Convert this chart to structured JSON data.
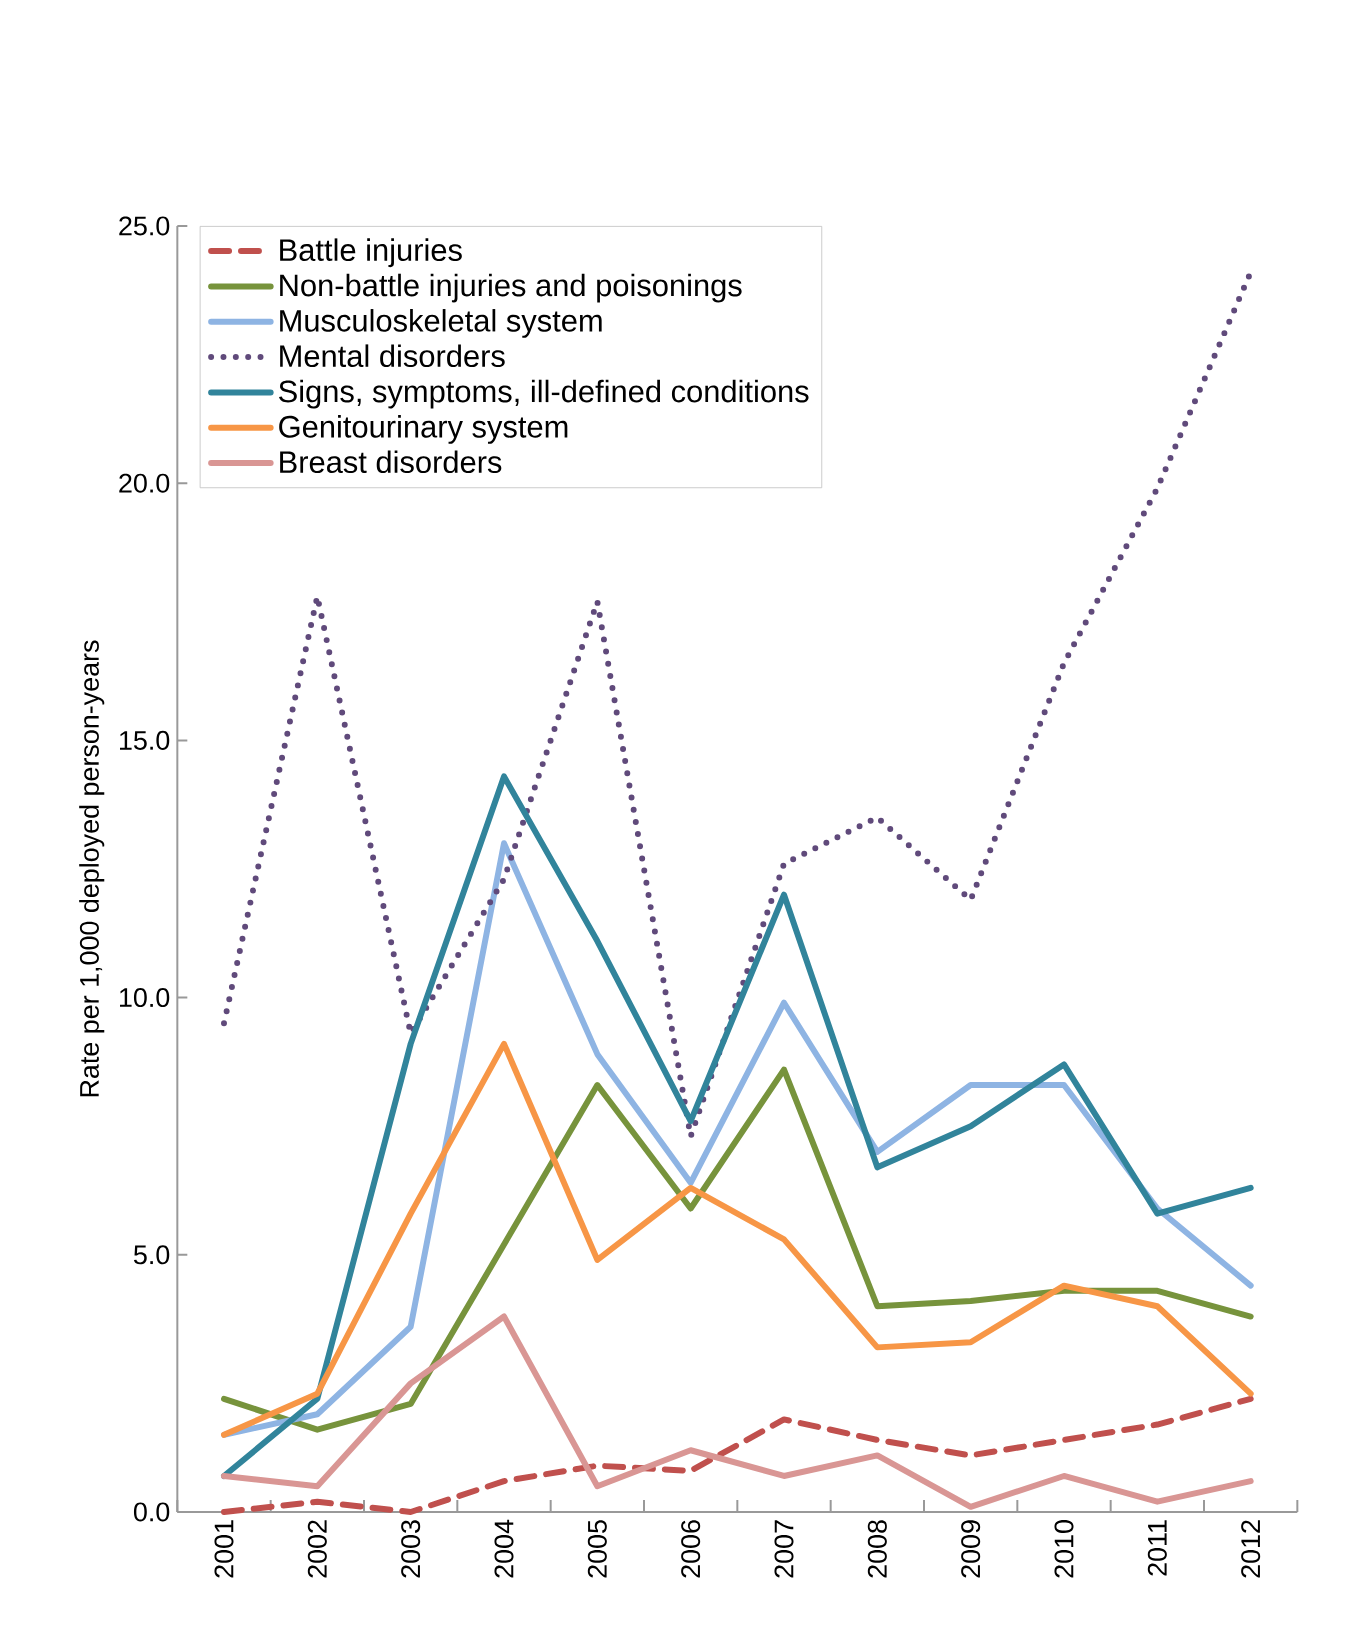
{
  "chart_data": {
    "type": "line",
    "ylabel": "Rate per 1,000 deployed person-years",
    "categories": [
      "2001",
      "2002",
      "2003",
      "2004",
      "2005",
      "2006",
      "2007",
      "2008",
      "2009",
      "2010",
      "2011",
      "2012"
    ],
    "ylim": [
      0,
      25
    ],
    "yticks": [
      {
        "value": 0,
        "label": "0.0"
      },
      {
        "value": 5,
        "label": "5.0"
      },
      {
        "value": 10,
        "label": "10.0"
      },
      {
        "value": 15,
        "label": "15.0"
      },
      {
        "value": 20,
        "label": "20.0"
      },
      {
        "value": 25,
        "label": "25.0"
      }
    ],
    "legend": "top left",
    "grid": false,
    "marker": "none",
    "series": [
      {
        "name": "Battle injuries",
        "color": "#c0504d",
        "line_style": "dashed",
        "values": [
          0.0,
          0.2,
          0.0,
          0.6,
          0.9,
          0.8,
          1.8,
          1.4,
          1.1,
          1.4,
          1.7,
          2.2
        ]
      },
      {
        "name": "Non-battle injuries and poisonings",
        "color": "#77933c",
        "line_style": "solid",
        "values": [
          2.2,
          1.6,
          2.1,
          5.2,
          8.3,
          5.9,
          8.6,
          4.0,
          4.1,
          4.3,
          4.3,
          3.8
        ]
      },
      {
        "name": "Musculoskeletal system",
        "color": "#8eb4e3",
        "line_style": "solid",
        "values": [
          1.5,
          1.9,
          3.6,
          13.0,
          8.9,
          6.4,
          9.9,
          7.0,
          8.3,
          8.3,
          5.9,
          4.4
        ]
      },
      {
        "name": "Mental disorders",
        "color": "#604a7b",
        "line_style": "dotted",
        "values": [
          9.5,
          17.8,
          9.3,
          12.3,
          17.7,
          7.3,
          12.6,
          13.5,
          11.9,
          16.5,
          19.9,
          24.1
        ]
      },
      {
        "name": "Signs, symptoms, ill-defined conditions",
        "color": "#31849b",
        "line_style": "solid",
        "values": [
          0.7,
          2.2,
          9.1,
          14.3,
          11.1,
          7.6,
          12.0,
          6.7,
          7.5,
          8.7,
          5.8,
          6.3
        ]
      },
      {
        "name": "Genitourinary system",
        "color": "#f79646",
        "line_style": "solid",
        "values": [
          1.5,
          2.3,
          5.8,
          9.1,
          4.9,
          6.3,
          5.3,
          3.2,
          3.3,
          4.4,
          4.0,
          2.3
        ]
      },
      {
        "name": "Breast disorders",
        "color": "#d99694",
        "line_style": "solid",
        "values": [
          0.7,
          0.5,
          2.5,
          3.8,
          0.5,
          1.2,
          0.7,
          1.1,
          0.1,
          0.7,
          0.2,
          0.6
        ]
      }
    ]
  }
}
